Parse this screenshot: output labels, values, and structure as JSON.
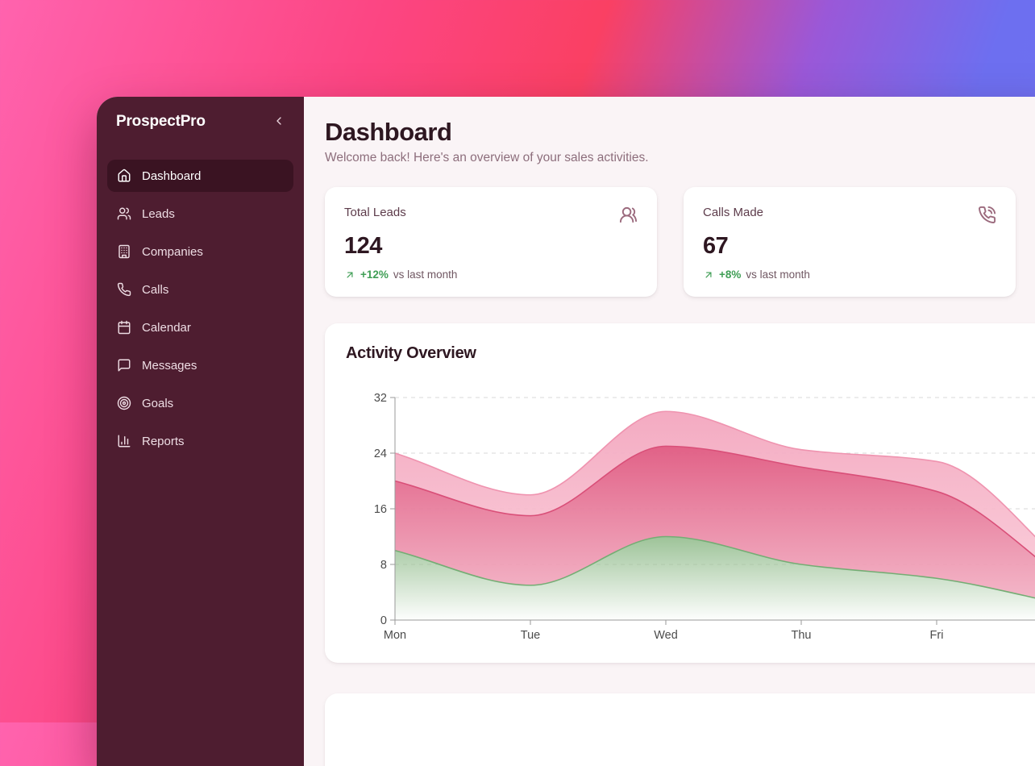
{
  "app": {
    "brand": "ProspectPro",
    "collapse_icon": "chevron-left-icon"
  },
  "sidebar": {
    "items": [
      {
        "label": "Dashboard",
        "icon": "home-icon",
        "active": true
      },
      {
        "label": "Leads",
        "icon": "users-icon",
        "active": false
      },
      {
        "label": "Companies",
        "icon": "building-icon",
        "active": false
      },
      {
        "label": "Calls",
        "icon": "phone-icon",
        "active": false
      },
      {
        "label": "Calendar",
        "icon": "calendar-icon",
        "active": false
      },
      {
        "label": "Messages",
        "icon": "message-square-icon",
        "active": false
      },
      {
        "label": "Goals",
        "icon": "target-icon",
        "active": false
      },
      {
        "label": "Reports",
        "icon": "chart-column-icon",
        "active": false
      }
    ]
  },
  "header": {
    "title": "Dashboard",
    "subtitle": "Welcome back! Here's an overview of your sales activities."
  },
  "stats": [
    {
      "label": "Total Leads",
      "value": "124",
      "icon": "users-round-icon",
      "trend_icon": "arrow-up-right-icon",
      "change": "+12%",
      "suffix": "vs last month"
    },
    {
      "label": "Calls Made",
      "value": "67",
      "icon": "phone-call-icon",
      "trend_icon": "arrow-up-right-icon",
      "change": "+8%",
      "suffix": "vs last month"
    }
  ],
  "colors": {
    "background_gradient_left": "#ff63ae",
    "background_gradient_mid": "#fa4063",
    "background_gradient_right": "#6d72f1",
    "sidebar_bg": "#4e1d30",
    "sidebar_active_bg": "#3a1322",
    "main_bg": "#faf4f6",
    "card_bg": "#ffffff",
    "heading_text": "#2e1721",
    "muted_text": "#8d6e7c",
    "trend_green": "#3f9e55",
    "stat_icon_mauve": "#9c6b7e"
  },
  "chart_data": {
    "type": "area",
    "stacked": true,
    "title": "Activity Overview",
    "categories": [
      "Mon",
      "Tue",
      "Wed",
      "Thu",
      "Fri"
    ],
    "note": "Chart card is clipped by the right edge of the screenshot; curves continue toward a sixth off-screen point (offscreen_next).",
    "series": [
      {
        "name": "bottom-green-band",
        "values": [
          10,
          5,
          12,
          8,
          6
        ],
        "offscreen_next": 2,
        "stroke": "#74ad74",
        "fill_top": "#98c093",
        "fill_bottom": "#98c093",
        "fill_top_opacity": 0.95,
        "fill_bottom_opacity": 0.02
      },
      {
        "name": "middle-rose-band",
        "values": [
          10,
          10,
          13,
          14,
          12.5
        ],
        "offscreen_next": 3,
        "stroke": "#d94f78",
        "fill_top": "#e05b82",
        "fill_bottom": "#f3b2c5",
        "fill_top_opacity": 0.96,
        "fill_bottom_opacity": 0.9
      },
      {
        "name": "top-pink-band",
        "values": [
          4,
          3,
          5,
          2.5,
          4.3
        ],
        "offscreen_next": 2,
        "stroke": "#ef93af",
        "fill_top": "#f3a6be",
        "fill_bottom": "#fac9d7",
        "fill_top_opacity": 0.95,
        "fill_bottom_opacity": 0.9
      }
    ],
    "ylim": [
      0,
      32
    ],
    "yticks": [
      0,
      8,
      16,
      24,
      32
    ],
    "grid": "dashed-horizontal",
    "legend": "none",
    "axis_color": "#9a9a9a",
    "grid_color": "#d8d8d8",
    "tick_label_color": "#4c4c4c"
  }
}
